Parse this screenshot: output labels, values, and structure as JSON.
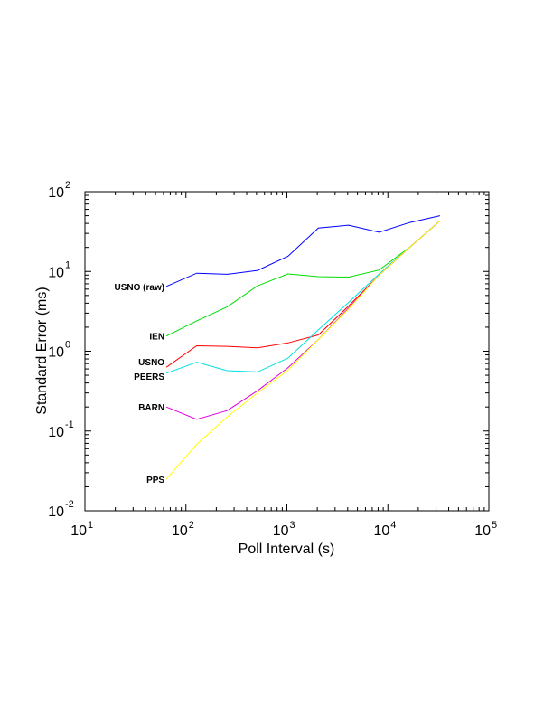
{
  "chart_data": {
    "type": "line",
    "title": "",
    "xlabel": "Poll Interval (s)",
    "ylabel": "Standard Error (ms)",
    "xscale": "log",
    "yscale": "log",
    "xlim": [
      10,
      100000
    ],
    "ylim": [
      0.01,
      100
    ],
    "grid": false,
    "legend": "inline labels at left end of each series",
    "x_ticks": [
      {
        "base": "10",
        "exp": "1"
      },
      {
        "base": "10",
        "exp": "2"
      },
      {
        "base": "10",
        "exp": "3"
      },
      {
        "base": "10",
        "exp": "4"
      },
      {
        "base": "10",
        "exp": "5"
      }
    ],
    "y_ticks": [
      {
        "base": "10",
        "exp": "-2"
      },
      {
        "base": "10",
        "exp": "-1"
      },
      {
        "base": "10",
        "exp": "0"
      },
      {
        "base": "10",
        "exp": "1"
      },
      {
        "base": "10",
        "exp": "2"
      }
    ],
    "series": [
      {
        "name": "USNO (raw)",
        "color": "#0000ff",
        "x": [
          64,
          128,
          256,
          512,
          1024,
          2048,
          4096,
          8192,
          16384,
          32768
        ],
        "y": [
          6.5,
          9.5,
          9.2,
          10.3,
          15.5,
          35,
          38,
          31,
          41,
          50
        ]
      },
      {
        "name": "IEN",
        "color": "#00dd00",
        "x": [
          64,
          128,
          256,
          512,
          1024,
          2048,
          4096,
          8192,
          16384,
          32768
        ],
        "y": [
          1.55,
          2.4,
          3.6,
          6.6,
          9.3,
          8.6,
          8.5,
          10.4,
          20,
          43
        ]
      },
      {
        "name": "USNO",
        "color": "#ff0000",
        "x": [
          64,
          128,
          256,
          512,
          1024,
          2048,
          4096,
          8192,
          16384,
          32768
        ],
        "y": [
          0.63,
          1.17,
          1.15,
          1.1,
          1.27,
          1.6,
          3.7,
          9.0,
          20,
          43
        ]
      },
      {
        "name": "PEERS",
        "color": "#00e0e0",
        "x": [
          64,
          128,
          256,
          512,
          1024,
          2048,
          4096,
          8192,
          16384,
          32768
        ],
        "y": [
          0.53,
          0.73,
          0.57,
          0.55,
          0.82,
          1.85,
          4.1,
          9.3,
          20,
          43
        ]
      },
      {
        "name": "BARN",
        "color": "#e000e0",
        "x": [
          64,
          128,
          256,
          512,
          1024,
          2048,
          4096,
          8192,
          16384,
          32768
        ],
        "y": [
          0.2,
          0.14,
          0.18,
          0.32,
          0.62,
          1.4,
          3.5,
          9.0,
          20,
          43
        ]
      },
      {
        "name": "PPS",
        "color": "#ffff00",
        "x": [
          64,
          128,
          256,
          512,
          1024,
          2048,
          4096,
          8192,
          16384,
          32768
        ],
        "y": [
          0.025,
          0.068,
          0.15,
          0.3,
          0.58,
          1.4,
          3.4,
          9.0,
          20,
          43
        ]
      }
    ]
  }
}
